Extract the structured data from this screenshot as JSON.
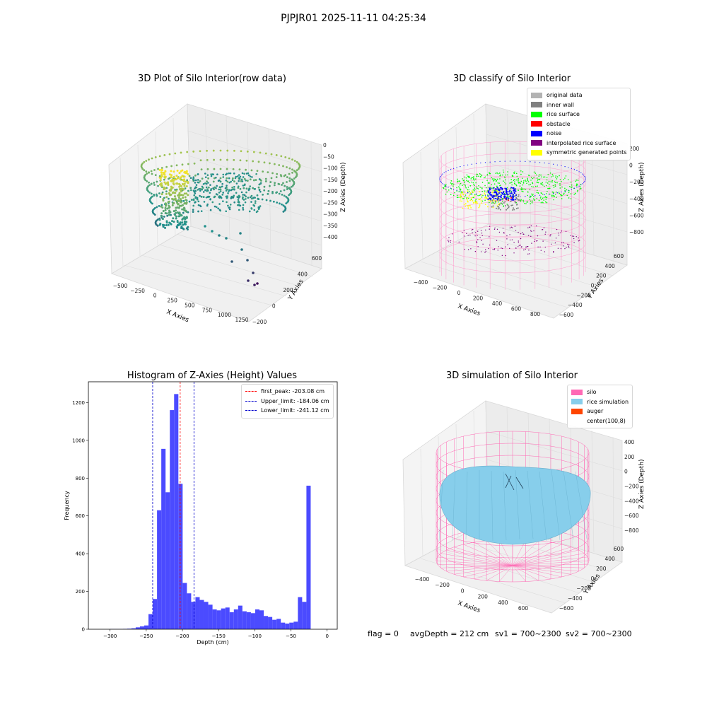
{
  "suptitle": "PJPJR01 2025-11-11 04:25:34",
  "status": {
    "flag": "flag = 0",
    "avg_depth": "avgDepth = 212 cm",
    "sv1": "sv1 = 700~2300",
    "sv2": "sv2 = 700~2300"
  },
  "colors": {
    "histogram": "#4b4bff",
    "first_peak_line": "#ff0000",
    "limit_lines": "#0000cc",
    "viridis_low": "#440154",
    "viridis_mid": "#21918c",
    "viridis_high": "#fde725",
    "silo_wire": "#ff69b4",
    "rice_sim": "#87ceeb"
  },
  "chart_data": [
    {
      "type": "scatter3d",
      "title": "3D Plot of Silo Interior(row data)",
      "xlabel": "X Axies",
      "ylabel": "Y Axies",
      "zlabel": "Z Axies (Depth)",
      "x_ticks": [
        "−500",
        "−250",
        "0",
        "250",
        "500",
        "750",
        "1000",
        "1250"
      ],
      "y_ticks": [
        "−200",
        "0",
        "200",
        "400",
        "600"
      ],
      "z_ticks": [
        "0",
        "−50",
        "−100",
        "−150",
        "−200",
        "−250",
        "−300",
        "−350",
        "−400"
      ],
      "colormap": "viridis",
      "grid": true
    },
    {
      "type": "scatter3d",
      "title": "3D classify of Silo Interior",
      "xlabel": "X Axies",
      "ylabel": "Y Axies",
      "zlabel": "Z Axies (Depth)",
      "x_ticks": [
        "−400",
        "−200",
        "0",
        "200",
        "400",
        "600",
        "800"
      ],
      "y_ticks": [
        "−600",
        "−400",
        "−200",
        "0",
        "200",
        "400",
        "600"
      ],
      "z_ticks": [
        "200",
        "0",
        "−200",
        "−400",
        "−600",
        "−800"
      ],
      "legend_position": "top-right",
      "legend": [
        {
          "label": "original data",
          "color": "#b3b3b3"
        },
        {
          "label": "inner wall",
          "color": "#808080"
        },
        {
          "label": "rice surface",
          "color": "#00ff00"
        },
        {
          "label": "obstacle",
          "color": "#ff0000"
        },
        {
          "label": "noise",
          "color": "#0000ff"
        },
        {
          "label": "interpolated rice surface",
          "color": "#800080"
        },
        {
          "label": "symmetric generated points",
          "color": "#ffff00"
        }
      ],
      "grid": true
    },
    {
      "type": "bar",
      "title": "Histogram of Z-Axies (Height) Values",
      "xlabel": "Depth (cm)",
      "ylabel": "Frequency",
      "xlim": [
        -330,
        14
      ],
      "ylim": [
        0,
        1310
      ],
      "x_ticks": [
        -300,
        -250,
        -200,
        -150,
        -100,
        -50,
        0
      ],
      "x_tick_labels": [
        "−300",
        "−250",
        "−200",
        "−150",
        "−100",
        "−50",
        "0"
      ],
      "y_ticks": [
        0,
        200,
        400,
        600,
        800,
        1000,
        1200
      ],
      "bin_start": -300,
      "bin_width": 5.9,
      "values": [
        1,
        1,
        1,
        2,
        3,
        5,
        10,
        15,
        20,
        80,
        160,
        630,
        955,
        725,
        1160,
        1245,
        770,
        245,
        190,
        145,
        170,
        155,
        145,
        130,
        105,
        100,
        110,
        115,
        90,
        105,
        125,
        95,
        90,
        85,
        105,
        100,
        70,
        65,
        50,
        55,
        35,
        30,
        35,
        40,
        170,
        145,
        760
      ],
      "vlines": [
        {
          "x": -203.08,
          "label": "first_peak: -203.08 cm",
          "color": "#ff0000"
        },
        {
          "x": -184.06,
          "label": "Upper_limit: -184.06 cm",
          "color": "#0000cc"
        },
        {
          "x": -241.12,
          "label": "Lower_limit: -241.12 cm",
          "color": "#0000cc"
        }
      ],
      "legend_position": "top-right",
      "grid": false
    },
    {
      "type": "surface3d",
      "title": "3D simulation of Silo Interior",
      "xlabel": "X Axies",
      "ylabel": "Y Axies",
      "zlabel": "Z Axies (Depth)",
      "x_ticks": [
        "−400",
        "−200",
        "0",
        "200",
        "400",
        "600"
      ],
      "y_ticks": [
        "−600",
        "−400",
        "−200",
        "0",
        "200",
        "400",
        "600"
      ],
      "z_ticks": [
        "400",
        "200",
        "0",
        "−200",
        "−400",
        "−600",
        "−800"
      ],
      "legend_position": "top-right",
      "legend": [
        {
          "label": "silo",
          "color": "#ff69b4"
        },
        {
          "label": "rice simulation",
          "color": "#87ceeb"
        },
        {
          "label": "auger",
          "color": "#ff4500"
        },
        {
          "label": "center(100,8)",
          "color": "#ffffff"
        }
      ],
      "grid": true
    }
  ]
}
